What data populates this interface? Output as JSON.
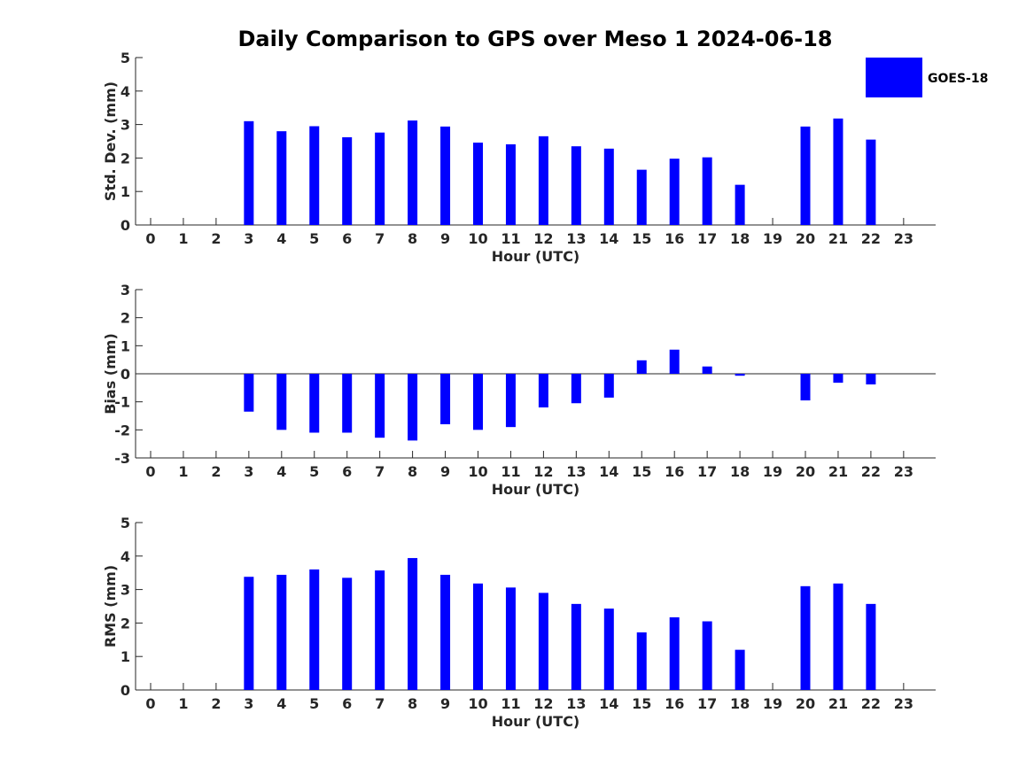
{
  "chart_data": {
    "type": "bar",
    "title": "Daily Comparison to GPS over Meso 1 2024-06-18",
    "legend": {
      "placement": "top-right",
      "entries": [
        {
          "name": "GOES-18",
          "color": "#0000ff"
        }
      ]
    },
    "x": [
      0,
      1,
      2,
      3,
      4,
      5,
      6,
      7,
      8,
      9,
      10,
      11,
      12,
      13,
      14,
      15,
      16,
      17,
      18,
      19,
      20,
      21,
      22,
      23
    ],
    "panels": [
      {
        "id": "std",
        "xlabel": "Hour (UTC)",
        "ylabel": "Std. Dev. (mm)",
        "ylim": [
          0,
          5
        ],
        "yticks": [
          0,
          1,
          2,
          3,
          4,
          5
        ],
        "series": [
          {
            "name": "GOES-18",
            "color": "#0000ff",
            "values": [
              null,
              null,
              null,
              3.1,
              2.8,
              2.95,
              2.62,
              2.76,
              3.12,
              2.94,
              2.46,
              2.41,
              2.65,
              2.35,
              2.28,
              1.65,
              1.98,
              2.02,
              1.2,
              null,
              2.94,
              3.18,
              2.55,
              null
            ]
          }
        ]
      },
      {
        "id": "bias",
        "xlabel": "Hour (UTC)",
        "ylabel": "Bias (mm)",
        "ylim": [
          -3,
          3
        ],
        "yticks": [
          -3,
          -2,
          -1,
          0,
          1,
          2,
          3
        ],
        "zero_line": true,
        "series": [
          {
            "name": "GOES-18",
            "color": "#0000ff",
            "values": [
              null,
              null,
              null,
              -1.35,
              -2.0,
              -2.1,
              -2.1,
              -2.28,
              -2.38,
              -1.8,
              -2.0,
              -1.9,
              -1.2,
              -1.05,
              -0.85,
              0.48,
              0.86,
              0.26,
              -0.07,
              null,
              -0.95,
              -0.32,
              -0.38,
              null
            ]
          }
        ]
      },
      {
        "id": "rms",
        "xlabel": "Hour (UTC)",
        "ylabel": "RMS (mm)",
        "ylim": [
          0,
          5
        ],
        "yticks": [
          0,
          1,
          2,
          3,
          4,
          5
        ],
        "series": [
          {
            "name": "GOES-18",
            "color": "#0000ff",
            "values": [
              null,
              null,
              null,
              3.38,
              3.44,
              3.6,
              3.35,
              3.57,
              3.94,
              3.44,
              3.18,
              3.06,
              2.9,
              2.57,
              2.43,
              1.72,
              2.17,
              2.05,
              1.2,
              null,
              3.1,
              3.18,
              2.57,
              null
            ]
          }
        ]
      }
    ]
  }
}
